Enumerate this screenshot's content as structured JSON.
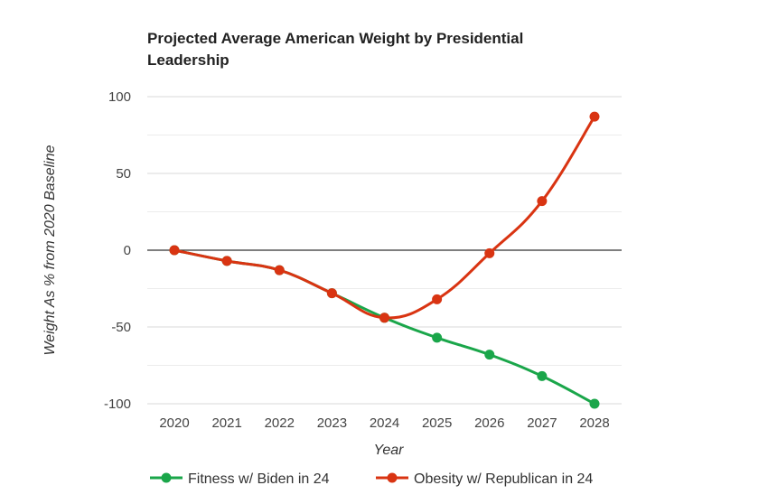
{
  "chart_data": {
    "type": "line",
    "title_lines": [
      "Projected Average American Weight by Presidential",
      "Leadership"
    ],
    "xlabel": "Year",
    "ylabel": "Weight As % from 2020 Baseline",
    "categories": [
      "2020",
      "2021",
      "2022",
      "2023",
      "2024",
      "2025",
      "2026",
      "2027",
      "2028"
    ],
    "yticks": [
      100,
      50,
      0,
      -50,
      -100
    ],
    "ylim": [
      -100,
      100
    ],
    "grid": true,
    "legend_position": "bottom",
    "series": [
      {
        "name": "Fitness w/ Biden in 24",
        "color": "#1aa64a",
        "values": [
          0,
          -7,
          -13,
          -28,
          -44,
          -57,
          -68,
          -82,
          -100
        ]
      },
      {
        "name": "Obesity w/ Republican in 24",
        "color": "#d93412",
        "values": [
          0,
          -7,
          -13,
          -28,
          -44,
          -32,
          -2,
          32,
          87
        ]
      }
    ]
  }
}
